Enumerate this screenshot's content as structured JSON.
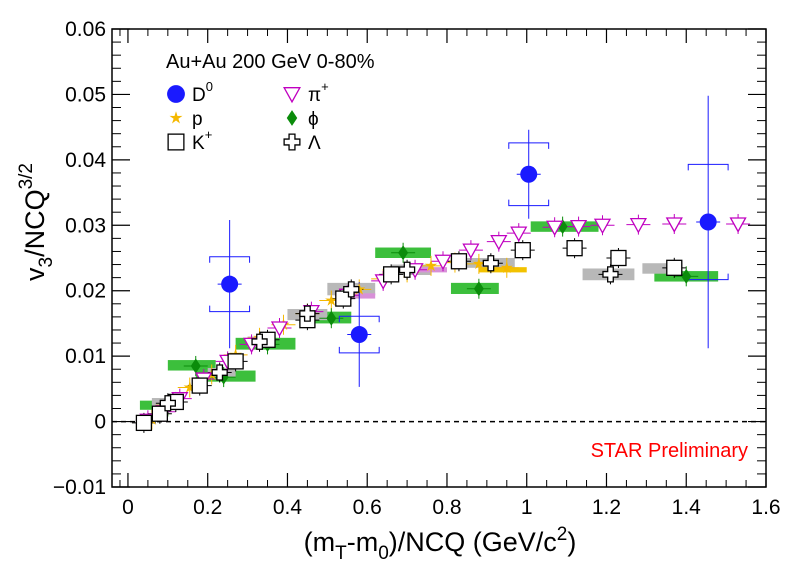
{
  "chart_data": {
    "type": "scatter",
    "annotation": "Au+Au 200 GeV 0-80%",
    "watermark": "STAR Preliminary",
    "xlabel": {
      "main": "(m",
      "sub1": "T",
      "mid": "-m",
      "sub2": "0",
      "tail": ")/NCQ (GeV/c",
      "sup": "2",
      "end": ")"
    },
    "ylabel": {
      "main": "v",
      "sub": "3",
      "mid": "/NCQ",
      "sup": "3/2"
    },
    "xlim": [
      -0.04,
      1.6
    ],
    "ylim": [
      -0.01,
      0.06
    ],
    "xticks": [
      0,
      0.2,
      0.4,
      0.6,
      0.8,
      1,
      1.2,
      1.4,
      1.6
    ],
    "xtick_labels": [
      "0",
      "0.2",
      "0.4",
      "0.6",
      "0.8",
      "1",
      "1.2",
      "1.4",
      "1.6"
    ],
    "yticks": [
      -0.01,
      0,
      0.01,
      0.02,
      0.03,
      0.04,
      0.05,
      0.06
    ],
    "ytick_labels": [
      "−0.01",
      "0",
      "0.01",
      "0.02",
      "0.03",
      "0.04",
      "0.05",
      "0.06"
    ],
    "zero_line": true,
    "grid": false,
    "legend_position": "top-left",
    "series": [
      {
        "name": "D",
        "name_sup": "0",
        "marker": "circle",
        "color": "#1a1aff",
        "points": [
          {
            "x": 0.255,
            "y": 0.021,
            "yerr": 0.0098,
            "syst": 0.0042,
            "xw": 0.05
          },
          {
            "x": 0.58,
            "y": 0.0133,
            "yerr": 0.008,
            "syst": 0.0028,
            "xw": 0.05
          },
          {
            "x": 1.005,
            "y": 0.0378,
            "yerr": 0.0068,
            "syst": 0.0048,
            "xw": 0.05
          },
          {
            "x": 1.455,
            "y": 0.0305,
            "yerr": 0.0193,
            "syst": 0.0088,
            "xw": 0.05
          }
        ]
      },
      {
        "name": "p",
        "marker": "star",
        "color": "#f5b800",
        "points": [
          {
            "x": 0.06,
            "y": 0.0003
          },
          {
            "x": 0.1,
            "y": 0.0025
          },
          {
            "x": 0.155,
            "y": 0.0052
          },
          {
            "x": 0.21,
            "y": 0.0072
          },
          {
            "x": 0.27,
            "y": 0.0102
          },
          {
            "x": 0.33,
            "y": 0.0128
          },
          {
            "x": 0.39,
            "y": 0.0148
          },
          {
            "x": 0.45,
            "y": 0.0165
          },
          {
            "x": 0.51,
            "y": 0.0185
          },
          {
            "x": 0.58,
            "y": 0.0202
          },
          {
            "x": 0.64,
            "y": 0.0218
          },
          {
            "x": 0.7,
            "y": 0.0228
          },
          {
            "x": 0.76,
            "y": 0.0238
          },
          {
            "x": 0.82,
            "y": 0.0243
          },
          {
            "x": 0.88,
            "y": 0.0241
          },
          {
            "x": 0.95,
            "y": 0.0235
          }
        ]
      },
      {
        "name": "K",
        "name_sup": "+",
        "marker": "open-square",
        "color": "#000000",
        "points": [
          {
            "x": 0.04,
            "y": -0.0002
          },
          {
            "x": 0.08,
            "y": 0.0012
          },
          {
            "x": 0.12,
            "y": 0.003
          },
          {
            "x": 0.18,
            "y": 0.0055
          },
          {
            "x": 0.27,
            "y": 0.0092
          },
          {
            "x": 0.35,
            "y": 0.0125
          },
          {
            "x": 0.45,
            "y": 0.0155
          },
          {
            "x": 0.54,
            "y": 0.0188
          },
          {
            "x": 0.66,
            "y": 0.0225
          },
          {
            "x": 0.83,
            "y": 0.0245
          },
          {
            "x": 0.99,
            "y": 0.0262
          },
          {
            "x": 1.12,
            "y": 0.0265
          },
          {
            "x": 1.23,
            "y": 0.025
          },
          {
            "x": 1.37,
            "y": 0.0235
          }
        ]
      },
      {
        "name": "π",
        "name_sup": "+",
        "marker": "open-triangle-down",
        "color": "#c000c0",
        "points": [
          {
            "x": 0.05,
            "y": 0.0002
          },
          {
            "x": 0.09,
            "y": 0.0015
          },
          {
            "x": 0.13,
            "y": 0.0035
          },
          {
            "x": 0.19,
            "y": 0.0065
          },
          {
            "x": 0.25,
            "y": 0.0092
          },
          {
            "x": 0.31,
            "y": 0.0118
          },
          {
            "x": 0.38,
            "y": 0.0143
          },
          {
            "x": 0.46,
            "y": 0.0168
          },
          {
            "x": 0.55,
            "y": 0.0193
          },
          {
            "x": 0.64,
            "y": 0.0215
          },
          {
            "x": 0.72,
            "y": 0.0232
          },
          {
            "x": 0.79,
            "y": 0.0245
          },
          {
            "x": 0.86,
            "y": 0.0262
          },
          {
            "x": 0.93,
            "y": 0.0275
          },
          {
            "x": 0.98,
            "y": 0.0288
          },
          {
            "x": 1.07,
            "y": 0.0297
          },
          {
            "x": 1.13,
            "y": 0.0298
          },
          {
            "x": 1.19,
            "y": 0.03
          },
          {
            "x": 1.28,
            "y": 0.0301
          },
          {
            "x": 1.37,
            "y": 0.0302
          },
          {
            "x": 1.53,
            "y": 0.0302
          }
        ]
      },
      {
        "name": "ϕ",
        "marker": "diamond",
        "color": "#0b8c0b",
        "points": [
          {
            "x": 0.1,
            "y": 0.0023
          },
          {
            "x": 0.17,
            "y": 0.0085
          },
          {
            "x": 0.24,
            "y": 0.0068
          },
          {
            "x": 0.35,
            "y": 0.0118
          },
          {
            "x": 0.51,
            "y": 0.0158
          },
          {
            "x": 0.69,
            "y": 0.0258
          },
          {
            "x": 0.88,
            "y": 0.0203
          },
          {
            "x": 1.09,
            "y": 0.0298
          },
          {
            "x": 1.4,
            "y": 0.0222
          }
        ]
      },
      {
        "name": "Λ",
        "marker": "open-cross",
        "color": "#000000",
        "points": [
          {
            "x": 0.1,
            "y": 0.0028
          },
          {
            "x": 0.23,
            "y": 0.0075
          },
          {
            "x": 0.33,
            "y": 0.0122
          },
          {
            "x": 0.45,
            "y": 0.0165
          },
          {
            "x": 0.56,
            "y": 0.0202
          },
          {
            "x": 0.7,
            "y": 0.0232
          },
          {
            "x": 0.91,
            "y": 0.0242
          },
          {
            "x": 1.21,
            "y": 0.0225
          }
        ]
      }
    ],
    "systematic_bands": [
      {
        "color": "#3cbf3c",
        "boxes": [
          [
            0.03,
            0.11,
            0.0018,
            0.0032
          ],
          [
            0.1,
            0.22,
            0.0078,
            0.0094
          ],
          [
            0.17,
            0.32,
            0.0061,
            0.0078
          ],
          [
            0.27,
            0.42,
            0.011,
            0.0128
          ],
          [
            0.43,
            0.56,
            0.015,
            0.0168
          ],
          [
            0.62,
            0.76,
            0.025,
            0.0266
          ],
          [
            0.81,
            0.93,
            0.0195,
            0.0212
          ],
          [
            1.01,
            1.18,
            0.029,
            0.0306
          ],
          [
            1.32,
            1.48,
            0.0214,
            0.023
          ]
        ]
      },
      {
        "color": "#b8b8b8",
        "boxes": [
          [
            0.06,
            0.12,
            0.0022,
            0.0036
          ],
          [
            0.2,
            0.27,
            0.0068,
            0.0082
          ],
          [
            0.3,
            0.36,
            0.0114,
            0.013
          ],
          [
            0.4,
            0.5,
            0.0155,
            0.0172
          ],
          [
            0.5,
            0.62,
            0.0193,
            0.0212
          ],
          [
            0.66,
            0.76,
            0.0224,
            0.024
          ],
          [
            0.85,
            0.97,
            0.0235,
            0.025
          ],
          [
            1.14,
            1.27,
            0.0216,
            0.0234
          ],
          [
            1.29,
            1.39,
            0.0226,
            0.0242
          ]
        ]
      },
      {
        "color": "#f2c200",
        "boxes": [
          [
            0.88,
            1.0,
            0.0228,
            0.0236
          ]
        ]
      },
      {
        "color": "#d890d8",
        "boxes": [
          [
            0.55,
            0.62,
            0.0188,
            0.0196
          ],
          [
            0.72,
            0.8,
            0.0228,
            0.0236
          ]
        ]
      }
    ]
  }
}
